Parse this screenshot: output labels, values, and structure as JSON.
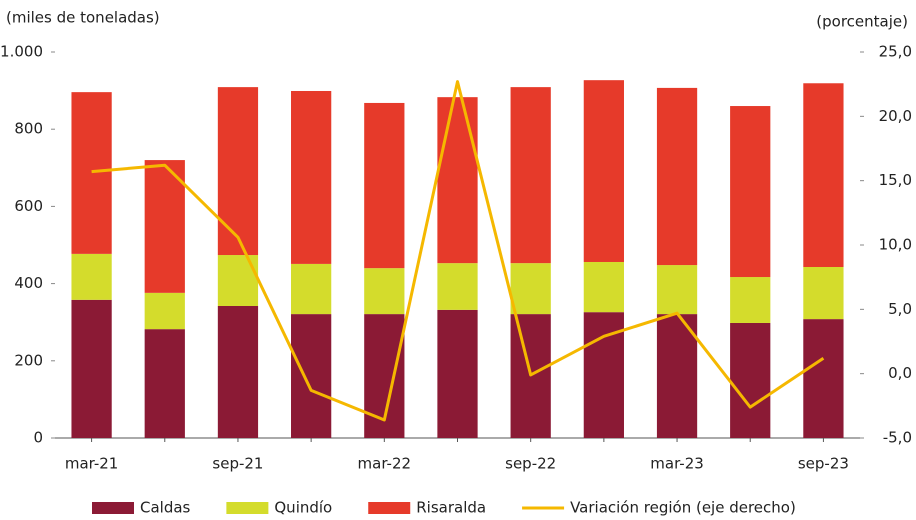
{
  "chart_data": {
    "type": "bar",
    "stacked": true,
    "y_axis_label": "(miles de toneladas)",
    "y2_axis_label": "(porcentaje)",
    "categories": [
      "mar-21",
      null,
      "sep-21",
      null,
      "mar-22",
      null,
      "sep-22",
      null,
      "mar-23",
      null,
      "sep-23"
    ],
    "series": [
      {
        "name": "Caldas",
        "type": "bar",
        "color": "#8b1a35",
        "values": [
          358,
          282,
          342,
          321,
          321,
          332,
          321,
          326,
          321,
          298,
          308
        ]
      },
      {
        "name": "Quindío",
        "type": "bar",
        "color": "#d4dc2c",
        "values": [
          119,
          94,
          132,
          130,
          119,
          121,
          132,
          130,
          127,
          119,
          135
        ]
      },
      {
        "name": "Risaralda",
        "type": "bar",
        "color": "#e63a2a",
        "values": [
          419,
          344,
          435,
          448,
          428,
          430,
          456,
          471,
          459,
          443,
          476
        ]
      },
      {
        "name": "Variación región (eje derecho)",
        "type": "line",
        "axis": "y2",
        "color": "#f5b800",
        "values": [
          15.7,
          16.2,
          10.6,
          -1.3,
          -3.6,
          22.7,
          -0.1,
          2.9,
          4.7,
          -2.6,
          1.2
        ]
      }
    ],
    "ylim": [
      0,
      1000
    ],
    "yticks": [
      0,
      200,
      400,
      600,
      800,
      {
        "value": 1000,
        "label": "1.000"
      }
    ],
    "y2lim": [
      -5,
      25
    ],
    "y2ticks": [
      {
        "value": -5,
        "label": "-5,0"
      },
      {
        "value": 0,
        "label": "0,0"
      },
      {
        "value": 5,
        "label": "5,0"
      },
      {
        "value": 10,
        "label": "10,0"
      },
      {
        "value": 15,
        "label": "15,0"
      },
      {
        "value": 20,
        "label": "20,0"
      },
      {
        "value": 25,
        "label": "25,0"
      }
    ],
    "grid": false,
    "legend": "bottom"
  }
}
